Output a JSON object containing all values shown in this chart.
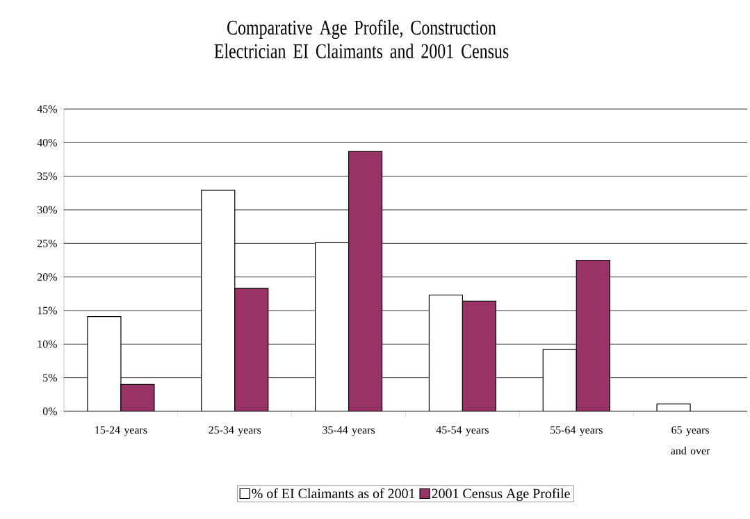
{
  "chart_data": {
    "type": "bar",
    "title": "Comparative Age Profile, Construction Electrician EI Claimants and 2001 Census",
    "categories": [
      "15-24 years",
      "25-34 years",
      "35-44 years",
      "45-54 years",
      "55-64 years",
      "65 years and over"
    ],
    "series": [
      {
        "name": "% of EI Claimants as of 2001",
        "color": "#ffffff",
        "values": [
          14.1,
          32.9,
          25.1,
          17.3,
          9.2,
          1.1
        ]
      },
      {
        "name": "2001 Census Age Profile",
        "color": "#993366",
        "values": [
          4.0,
          18.3,
          38.7,
          16.4,
          22.5,
          null
        ]
      }
    ],
    "ylim": [
      0,
      45
    ],
    "yticks": [
      {
        "value": 0,
        "label": "0%"
      },
      {
        "value": 5,
        "label": "5%"
      },
      {
        "value": 10,
        "label": "10%"
      },
      {
        "value": 15,
        "label": "15%"
      },
      {
        "value": 20,
        "label": "20%"
      },
      {
        "value": 25,
        "label": "25%"
      },
      {
        "value": 30,
        "label": "30%"
      },
      {
        "value": 35,
        "label": "35%"
      },
      {
        "value": 40,
        "label": "40%"
      },
      {
        "value": 45,
        "label": "45%"
      }
    ],
    "grid": "y",
    "legend": "bottom"
  }
}
